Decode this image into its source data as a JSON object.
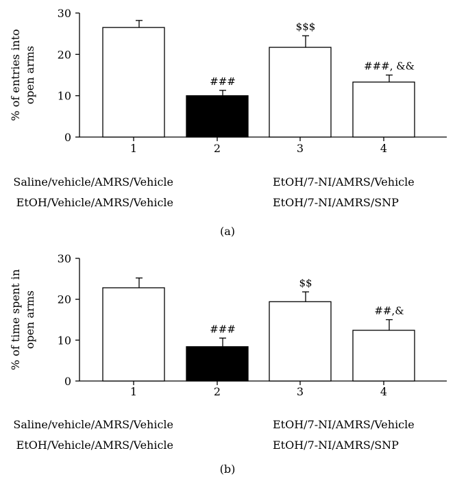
{
  "chart_data": [
    {
      "type": "bar",
      "panel_label": "(a)",
      "ylabel_lines": [
        "% of entries into",
        "open arms"
      ],
      "categories": [
        "1",
        "2",
        "3",
        "4"
      ],
      "values": [
        26.5,
        10.0,
        21.7,
        13.3
      ],
      "errors": [
        1.7,
        1.3,
        2.8,
        1.7
      ],
      "annotations": [
        "",
        "###",
        "$$$",
        "###, &&"
      ],
      "bar_colors": [
        "#ffffff",
        "#000000",
        "#ffffff",
        "#ffffff"
      ],
      "ylim": [
        0,
        30
      ],
      "yticks": [
        0,
        10,
        20,
        30
      ],
      "legend_rows": [
        [
          "Saline/vehicle/AMRS/Vehicle",
          "EtOH/7-NI/AMRS/Vehicle"
        ],
        [
          "EtOH/Vehicle/AMRS/Vehicle",
          "EtOH/7-NI/AMRS/SNP"
        ]
      ]
    },
    {
      "type": "bar",
      "panel_label": "(b)",
      "ylabel_lines": [
        "% of time spent in",
        "open arms"
      ],
      "categories": [
        "1",
        "2",
        "3",
        "4"
      ],
      "values": [
        22.8,
        8.4,
        19.4,
        12.4
      ],
      "errors": [
        2.4,
        2.1,
        2.4,
        2.6
      ],
      "annotations": [
        "",
        "###",
        "$$",
        "##,&"
      ],
      "bar_colors": [
        "#ffffff",
        "#000000",
        "#ffffff",
        "#ffffff"
      ],
      "ylim": [
        0,
        30
      ],
      "yticks": [
        0,
        10,
        20,
        30
      ],
      "legend_rows": [
        [
          "Saline/vehicle/AMRS/Vehicle",
          "EtOH/7-NI/AMRS/Vehicle"
        ],
        [
          "EtOH/Vehicle/AMRS/Vehicle",
          "EtOH/7-NI/AMRS/SNP"
        ]
      ]
    }
  ]
}
